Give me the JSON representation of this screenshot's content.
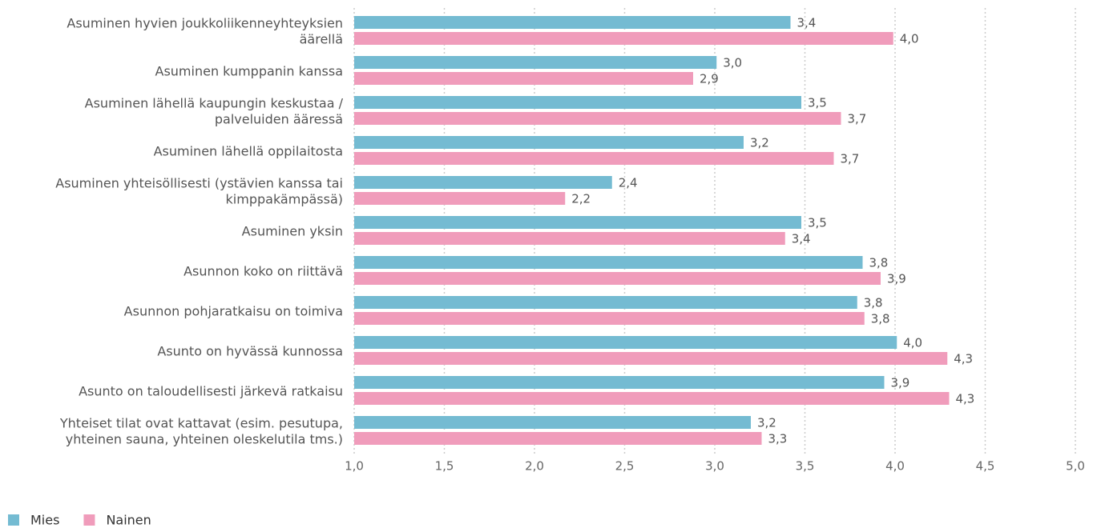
{
  "chart_data": {
    "type": "hbar",
    "categories": [
      [
        "Asuminen hyvien joukkoliikenneyhteyksien",
        "äärellä"
      ],
      [
        "Asuminen kumppanin kanssa"
      ],
      [
        "Asuminen lähellä kaupungin keskustaa /",
        "palveluiden ääressä"
      ],
      [
        "Asuminen lähellä oppilaitosta"
      ],
      [
        "Asuminen yhteisöllisesti (ystävien kanssa tai",
        "kimppakämpässä)"
      ],
      [
        "Asuminen yksin"
      ],
      [
        "Asunnon koko on riittävä"
      ],
      [
        "Asunnon pohjaratkaisu on toimiva"
      ],
      [
        "Asunto on hyvässä kunnossa"
      ],
      [
        "Asunto on taloudellisesti järkevä ratkaisu"
      ],
      [
        "Yhteiset tilat ovat kattavat (esim. pesutupa,",
        "yhteinen sauna, yhteinen oleskelutila tms.)"
      ]
    ],
    "series": [
      {
        "name": "Mies",
        "color": "#74bbd2",
        "values": [
          3.42,
          3.01,
          3.48,
          3.16,
          2.43,
          3.48,
          3.82,
          3.79,
          4.01,
          3.94,
          3.2
        ],
        "value_labels": [
          "3,4",
          "3,0",
          "3,5",
          "3,2",
          "2,4",
          "3,5",
          "3,8",
          "3,8",
          "4,0",
          "3,9",
          "3,2"
        ]
      },
      {
        "name": "Nainen",
        "color": "#f09cbb",
        "values": [
          3.99,
          2.88,
          3.7,
          3.66,
          2.17,
          3.39,
          3.92,
          3.83,
          4.29,
          4.3,
          3.26
        ],
        "value_labels": [
          "4,0",
          "2,9",
          "3,7",
          "3,7",
          "2,2",
          "3,4",
          "3,9",
          "3,8",
          "4,3",
          "4,3",
          "3,3"
        ]
      }
    ],
    "xlim": [
      1,
      5
    ],
    "xticks": [
      {
        "value": 1,
        "label": "1,0"
      },
      {
        "value": 1.5,
        "label": "1,5"
      },
      {
        "value": 2,
        "label": "2,0"
      },
      {
        "value": 2.5,
        "label": "2,5"
      },
      {
        "value": 3,
        "label": "3,0"
      },
      {
        "value": 3.5,
        "label": "3,5"
      },
      {
        "value": 4,
        "label": "4,0"
      },
      {
        "value": 4.5,
        "label": "4,5"
      },
      {
        "value": 5,
        "label": "5,0"
      }
    ],
    "grid": true,
    "legend": "bottom-left"
  }
}
